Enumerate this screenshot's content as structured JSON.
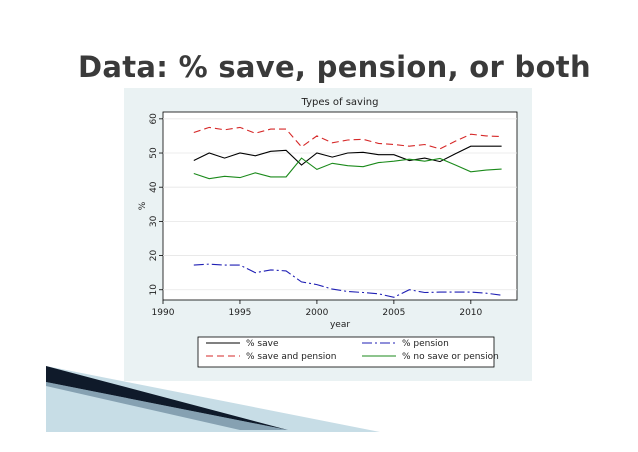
{
  "slide": {
    "title": "Data: % save, pension, or both"
  },
  "colors": {
    "panel_bg": "#eaf2f3",
    "plot_bg": "#ffffff",
    "deco_dark": "#0f1a2a",
    "deco_light": "#c7dde6"
  },
  "chart_data": {
    "type": "line",
    "title": "Types of saving",
    "xlabel": "year",
    "ylabel": "%",
    "xlim": [
      1990,
      2013
    ],
    "ylim": [
      7,
      62
    ],
    "xticks": [
      1990,
      1995,
      2000,
      2005,
      2010
    ],
    "yticks": [
      10,
      20,
      30,
      40,
      50,
      60
    ],
    "grid": "horizontal",
    "legend_position": "bottom",
    "x": [
      1992,
      1993,
      1994,
      1995,
      1996,
      1997,
      1998,
      1999,
      2000,
      2001,
      2002,
      2003,
      2004,
      2005,
      2006,
      2007,
      2008,
      2009,
      2010,
      2011,
      2012
    ],
    "series": [
      {
        "name": "% save",
        "color": "#000000",
        "dash": "",
        "values": [
          47.8,
          50,
          48.5,
          50,
          49.2,
          50.5,
          50.8,
          46.5,
          50,
          48.8,
          50,
          50.2,
          49.5,
          49.5,
          47.8,
          48.5,
          47.5,
          49.8,
          52,
          52,
          52
        ]
      },
      {
        "name": "% pension",
        "color": "#1f1fb4",
        "dash": "10,3,2,3",
        "values": [
          17.2,
          17.5,
          17.2,
          17.2,
          15,
          15.8,
          15.5,
          12.3,
          11.5,
          10.2,
          9.5,
          9.2,
          8.8,
          7.8,
          10,
          9.2,
          9.3,
          9.3,
          9.3,
          9,
          8.4
        ]
      },
      {
        "name": "% save and pension",
        "color": "#d62828",
        "dash": "7,4",
        "values": [
          56,
          57.5,
          56.8,
          57.5,
          55.8,
          57,
          57,
          51.8,
          55,
          53,
          53.8,
          54,
          52.8,
          52.5,
          52,
          52.5,
          51.2,
          53.5,
          55.5,
          55,
          54.8
        ]
      },
      {
        "name": "% no save or pension",
        "color": "#1b8a1b",
        "dash": "",
        "values": [
          44,
          42.5,
          43.2,
          42.8,
          44.2,
          43,
          43,
          48.5,
          45.2,
          47,
          46.3,
          46,
          47.2,
          47.6,
          48.2,
          47.6,
          48.4,
          46.5,
          44.5,
          45,
          45.3
        ]
      }
    ],
    "legend_order": [
      "% save",
      "% pension",
      "% save and pension",
      "% no save or pension"
    ]
  }
}
